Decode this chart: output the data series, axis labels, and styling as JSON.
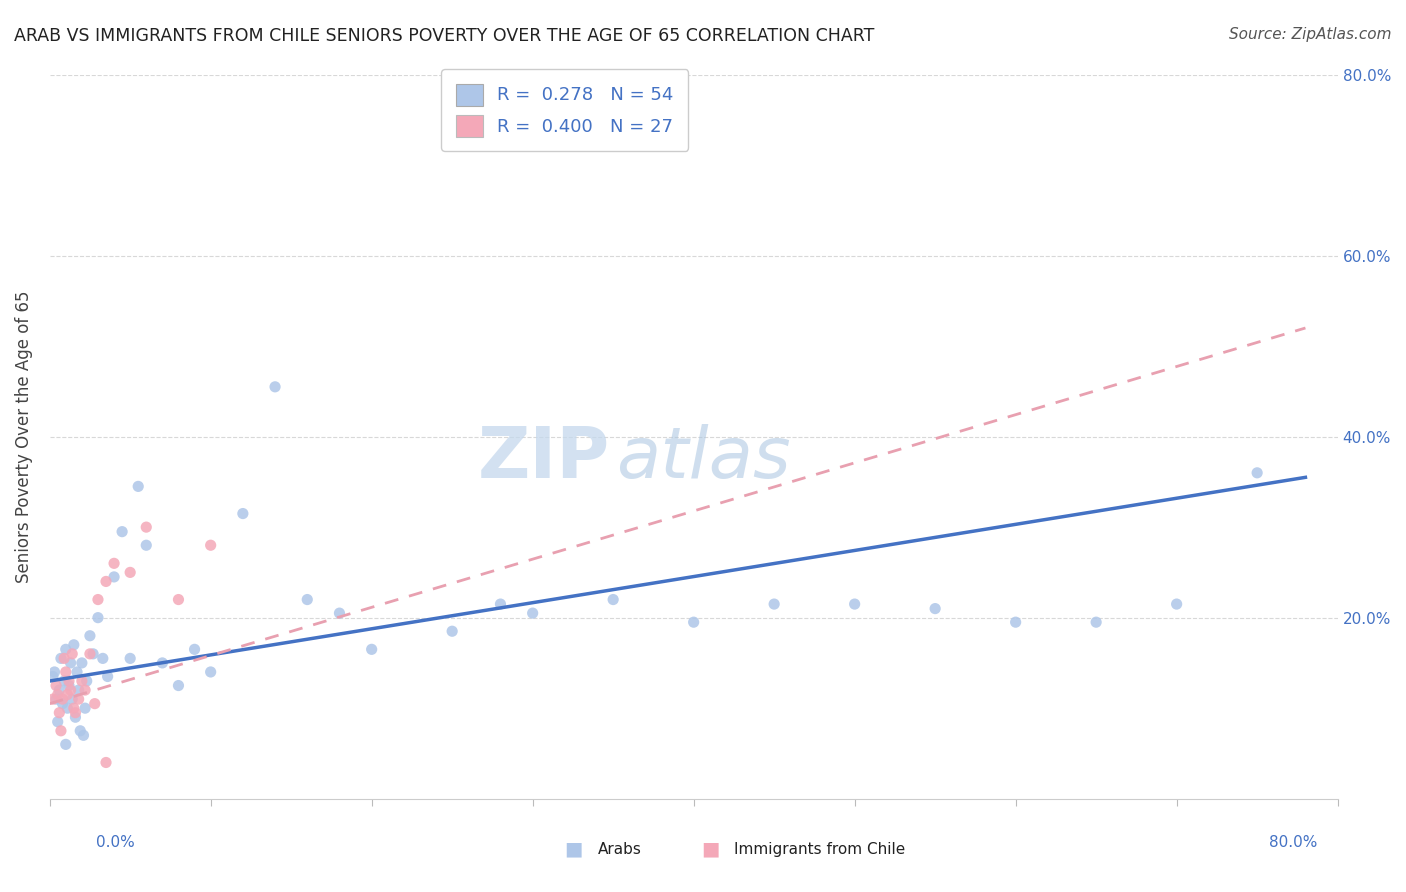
{
  "title": "ARAB VS IMMIGRANTS FROM CHILE SENIORS POVERTY OVER THE AGE OF 65 CORRELATION CHART",
  "source": "Source: ZipAtlas.com",
  "ylabel": "Seniors Poverty Over the Age of 65",
  "xlim": [
    0.0,
    0.8
  ],
  "ylim": [
    0.0,
    0.8
  ],
  "legend_arab": "R =  0.278   N = 54",
  "legend_chile": "R =  0.400   N = 27",
  "arab_color": "#aec6e8",
  "chile_color": "#f4a8b8",
  "arab_line_color": "#4472c4",
  "chile_line_color": "#e8a0b0",
  "grid_color": "#d8d8d8",
  "text_color": "#4472c4",
  "arab_x": [
    0.002,
    0.003,
    0.004,
    0.005,
    0.006,
    0.007,
    0.008,
    0.009,
    0.01,
    0.01,
    0.011,
    0.012,
    0.013,
    0.014,
    0.015,
    0.016,
    0.017,
    0.018,
    0.019,
    0.02,
    0.021,
    0.022,
    0.023,
    0.025,
    0.027,
    0.03,
    0.033,
    0.036,
    0.04,
    0.045,
    0.05,
    0.055,
    0.06,
    0.07,
    0.08,
    0.09,
    0.1,
    0.12,
    0.14,
    0.16,
    0.18,
    0.2,
    0.25,
    0.28,
    0.3,
    0.35,
    0.4,
    0.45,
    0.5,
    0.55,
    0.6,
    0.65,
    0.7,
    0.75
  ],
  "arab_y": [
    0.135,
    0.14,
    0.11,
    0.085,
    0.12,
    0.155,
    0.105,
    0.13,
    0.165,
    0.06,
    0.1,
    0.125,
    0.15,
    0.11,
    0.17,
    0.09,
    0.14,
    0.12,
    0.075,
    0.15,
    0.07,
    0.1,
    0.13,
    0.18,
    0.16,
    0.2,
    0.155,
    0.135,
    0.245,
    0.295,
    0.155,
    0.345,
    0.28,
    0.15,
    0.125,
    0.165,
    0.14,
    0.315,
    0.455,
    0.22,
    0.205,
    0.165,
    0.185,
    0.215,
    0.205,
    0.22,
    0.195,
    0.215,
    0.215,
    0.21,
    0.195,
    0.195,
    0.215,
    0.36
  ],
  "chile_x": [
    0.002,
    0.004,
    0.005,
    0.006,
    0.007,
    0.008,
    0.009,
    0.01,
    0.011,
    0.012,
    0.013,
    0.014,
    0.015,
    0.016,
    0.018,
    0.02,
    0.022,
    0.025,
    0.028,
    0.03,
    0.035,
    0.04,
    0.05,
    0.06,
    0.08,
    0.1,
    0.035
  ],
  "chile_y": [
    0.11,
    0.125,
    0.115,
    0.095,
    0.075,
    0.11,
    0.155,
    0.14,
    0.115,
    0.13,
    0.12,
    0.16,
    0.1,
    0.095,
    0.11,
    0.13,
    0.12,
    0.16,
    0.105,
    0.22,
    0.24,
    0.26,
    0.25,
    0.3,
    0.22,
    0.28,
    0.04
  ],
  "arab_line_start_x": 0.0,
  "arab_line_end_x": 0.78,
  "arab_line_start_y": 0.13,
  "arab_line_end_y": 0.355,
  "chile_line_start_x": 0.0,
  "chile_line_end_x": 0.78,
  "chile_line_start_y": 0.105,
  "chile_line_end_y": 0.52
}
